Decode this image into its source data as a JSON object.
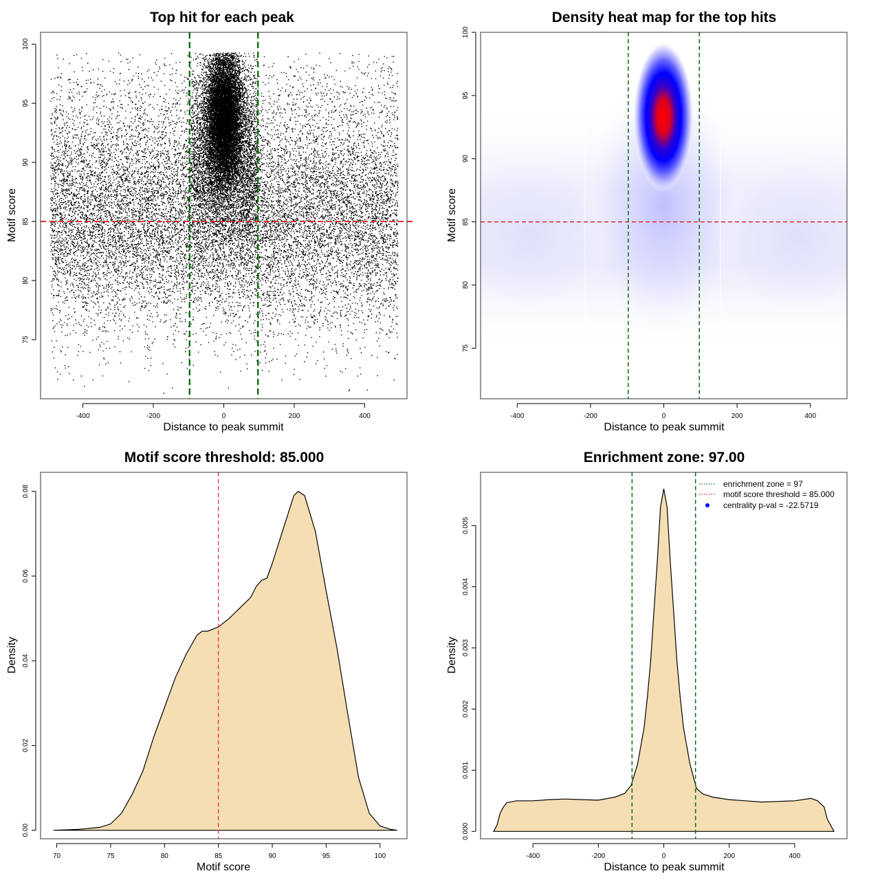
{
  "colors": {
    "threshold": "#e3262b",
    "zone": "#0f6b12",
    "fill": "#f5deb3",
    "heat_low": "#ffffff",
    "heat_mid": "#0000ff",
    "heat_high": "#ff0000"
  },
  "chart_data": [
    {
      "id": "scatter",
      "type": "scatter",
      "title": "Top hit for each peak",
      "xlabel": "Distance to peak summit",
      "ylabel": "Motif score",
      "xlim": [
        -520,
        520
      ],
      "ylim": [
        70,
        101
      ],
      "xticks": [
        -400,
        -200,
        0,
        200,
        400
      ],
      "xtick_labels": [
        "-400",
        "-200",
        "0",
        "200",
        "400"
      ],
      "yticks": [
        75,
        80,
        85,
        90,
        95,
        100
      ],
      "ytick_labels": [
        "75",
        "80",
        "85",
        "90",
        "95",
        "100"
      ],
      "hline": 85,
      "vlines": [
        -97,
        97
      ],
      "description": "about 40k points; uniform distance background with scores mainly 78-99, dense central cluster at distance 0 with scores 85-99"
    },
    {
      "id": "heatmap",
      "type": "heatmap",
      "title": "Density heat map for the top hits",
      "xlabel": "Distance to peak summit",
      "ylabel": "Motif score",
      "xlim": [
        -500,
        500
      ],
      "ylim": [
        71,
        100
      ],
      "xticks": [
        -400,
        -200,
        0,
        200,
        400
      ],
      "xtick_labels": [
        "-400",
        "-200",
        "0",
        "200",
        "400"
      ],
      "yticks": [
        75,
        80,
        85,
        90,
        95,
        100
      ],
      "ytick_labels": [
        "75",
        "80",
        "85",
        "90",
        "95",
        "100"
      ],
      "hline": 85,
      "vlines": [
        -97,
        97
      ],
      "peak": {
        "x": 0,
        "y": 93.5
      }
    },
    {
      "id": "score_density",
      "type": "area",
      "title": "Motif score threshold: 85.000",
      "xlabel": "Motif score",
      "ylabel": "Density",
      "xlim": [
        68.5,
        102.5
      ],
      "ylim": [
        -0.002,
        0.0845
      ],
      "xticks": [
        70,
        75,
        80,
        85,
        90,
        95,
        100
      ],
      "xtick_labels": [
        "70",
        "75",
        "80",
        "85",
        "90",
        "95",
        "100"
      ],
      "yticks": [
        0.0,
        0.02,
        0.04,
        0.06,
        0.08
      ],
      "ytick_labels": [
        "0.00",
        "0.02",
        "0.04",
        "0.06",
        "0.08"
      ],
      "vline": 85,
      "x": [
        69.7,
        72,
        74,
        75,
        76,
        77,
        78,
        79,
        80,
        81,
        82,
        83,
        83.5,
        84,
        85,
        86,
        87,
        88,
        88.5,
        89,
        89.5,
        90,
        91,
        92,
        92.4,
        93,
        94,
        95,
        96,
        97,
        98,
        99,
        100,
        101,
        101.6
      ],
      "values": [
        0.0,
        0.0002,
        0.0007,
        0.0015,
        0.004,
        0.0085,
        0.014,
        0.022,
        0.029,
        0.036,
        0.0415,
        0.046,
        0.047,
        0.047,
        0.048,
        0.05,
        0.0525,
        0.055,
        0.0575,
        0.059,
        0.0595,
        0.063,
        0.071,
        0.079,
        0.08,
        0.079,
        0.0705,
        0.0565,
        0.043,
        0.0275,
        0.0125,
        0.004,
        0.001,
        0.0002,
        0.0
      ]
    },
    {
      "id": "distance_density",
      "type": "area",
      "title": "Enrichment zone: 97.00",
      "xlabel": "Distance to peak summit",
      "ylabel": "Density",
      "xlim": [
        -560,
        560
      ],
      "ylim": [
        -0.00012,
        0.00587
      ],
      "xticks": [
        -400,
        -200,
        0,
        200,
        400
      ],
      "xtick_labels": [
        "-400",
        "-200",
        "0",
        "200",
        "400"
      ],
      "yticks": [
        0.0,
        0.001,
        0.002,
        0.003,
        0.004,
        0.005
      ],
      "ytick_labels": [
        "0.000",
        "0.001",
        "0.002",
        "0.003",
        "0.004",
        "0.005"
      ],
      "vlines": [
        -97,
        97
      ],
      "x": [
        -520,
        -510,
        -500,
        -490,
        -480,
        -450,
        -400,
        -350,
        -300,
        -250,
        -200,
        -150,
        -120,
        -100,
        -80,
        -60,
        -50,
        -40,
        -30,
        -20,
        -10,
        0,
        10,
        20,
        30,
        40,
        50,
        60,
        80,
        100,
        120,
        150,
        200,
        250,
        300,
        350,
        400,
        450,
        470,
        490,
        500,
        510,
        520
      ],
      "values": [
        0.0,
        0.0001,
        0.0003,
        0.0004,
        0.00047,
        0.0005,
        0.0005,
        0.00052,
        0.00053,
        0.00052,
        0.00051,
        0.00056,
        0.00062,
        0.00075,
        0.0011,
        0.0017,
        0.0022,
        0.0028,
        0.0036,
        0.0044,
        0.0053,
        0.0056,
        0.0053,
        0.0044,
        0.0036,
        0.0028,
        0.0022,
        0.0017,
        0.0011,
        0.0007,
        0.00061,
        0.00056,
        0.00052,
        0.0005,
        0.00048,
        0.00049,
        0.0005,
        0.00054,
        0.0005,
        0.0004,
        0.0002,
        0.0001,
        0.0
      ],
      "legend": [
        {
          "label": "enrichment zone = 97",
          "style": "dotted-line",
          "color": "#0f6b12"
        },
        {
          "label": "motif score threshold = 85.000",
          "style": "dotted-line",
          "color": "#e3262b"
        },
        {
          "label": "centrality p-val = -22.5719",
          "style": "point",
          "color": "#0000ff"
        }
      ]
    }
  ]
}
